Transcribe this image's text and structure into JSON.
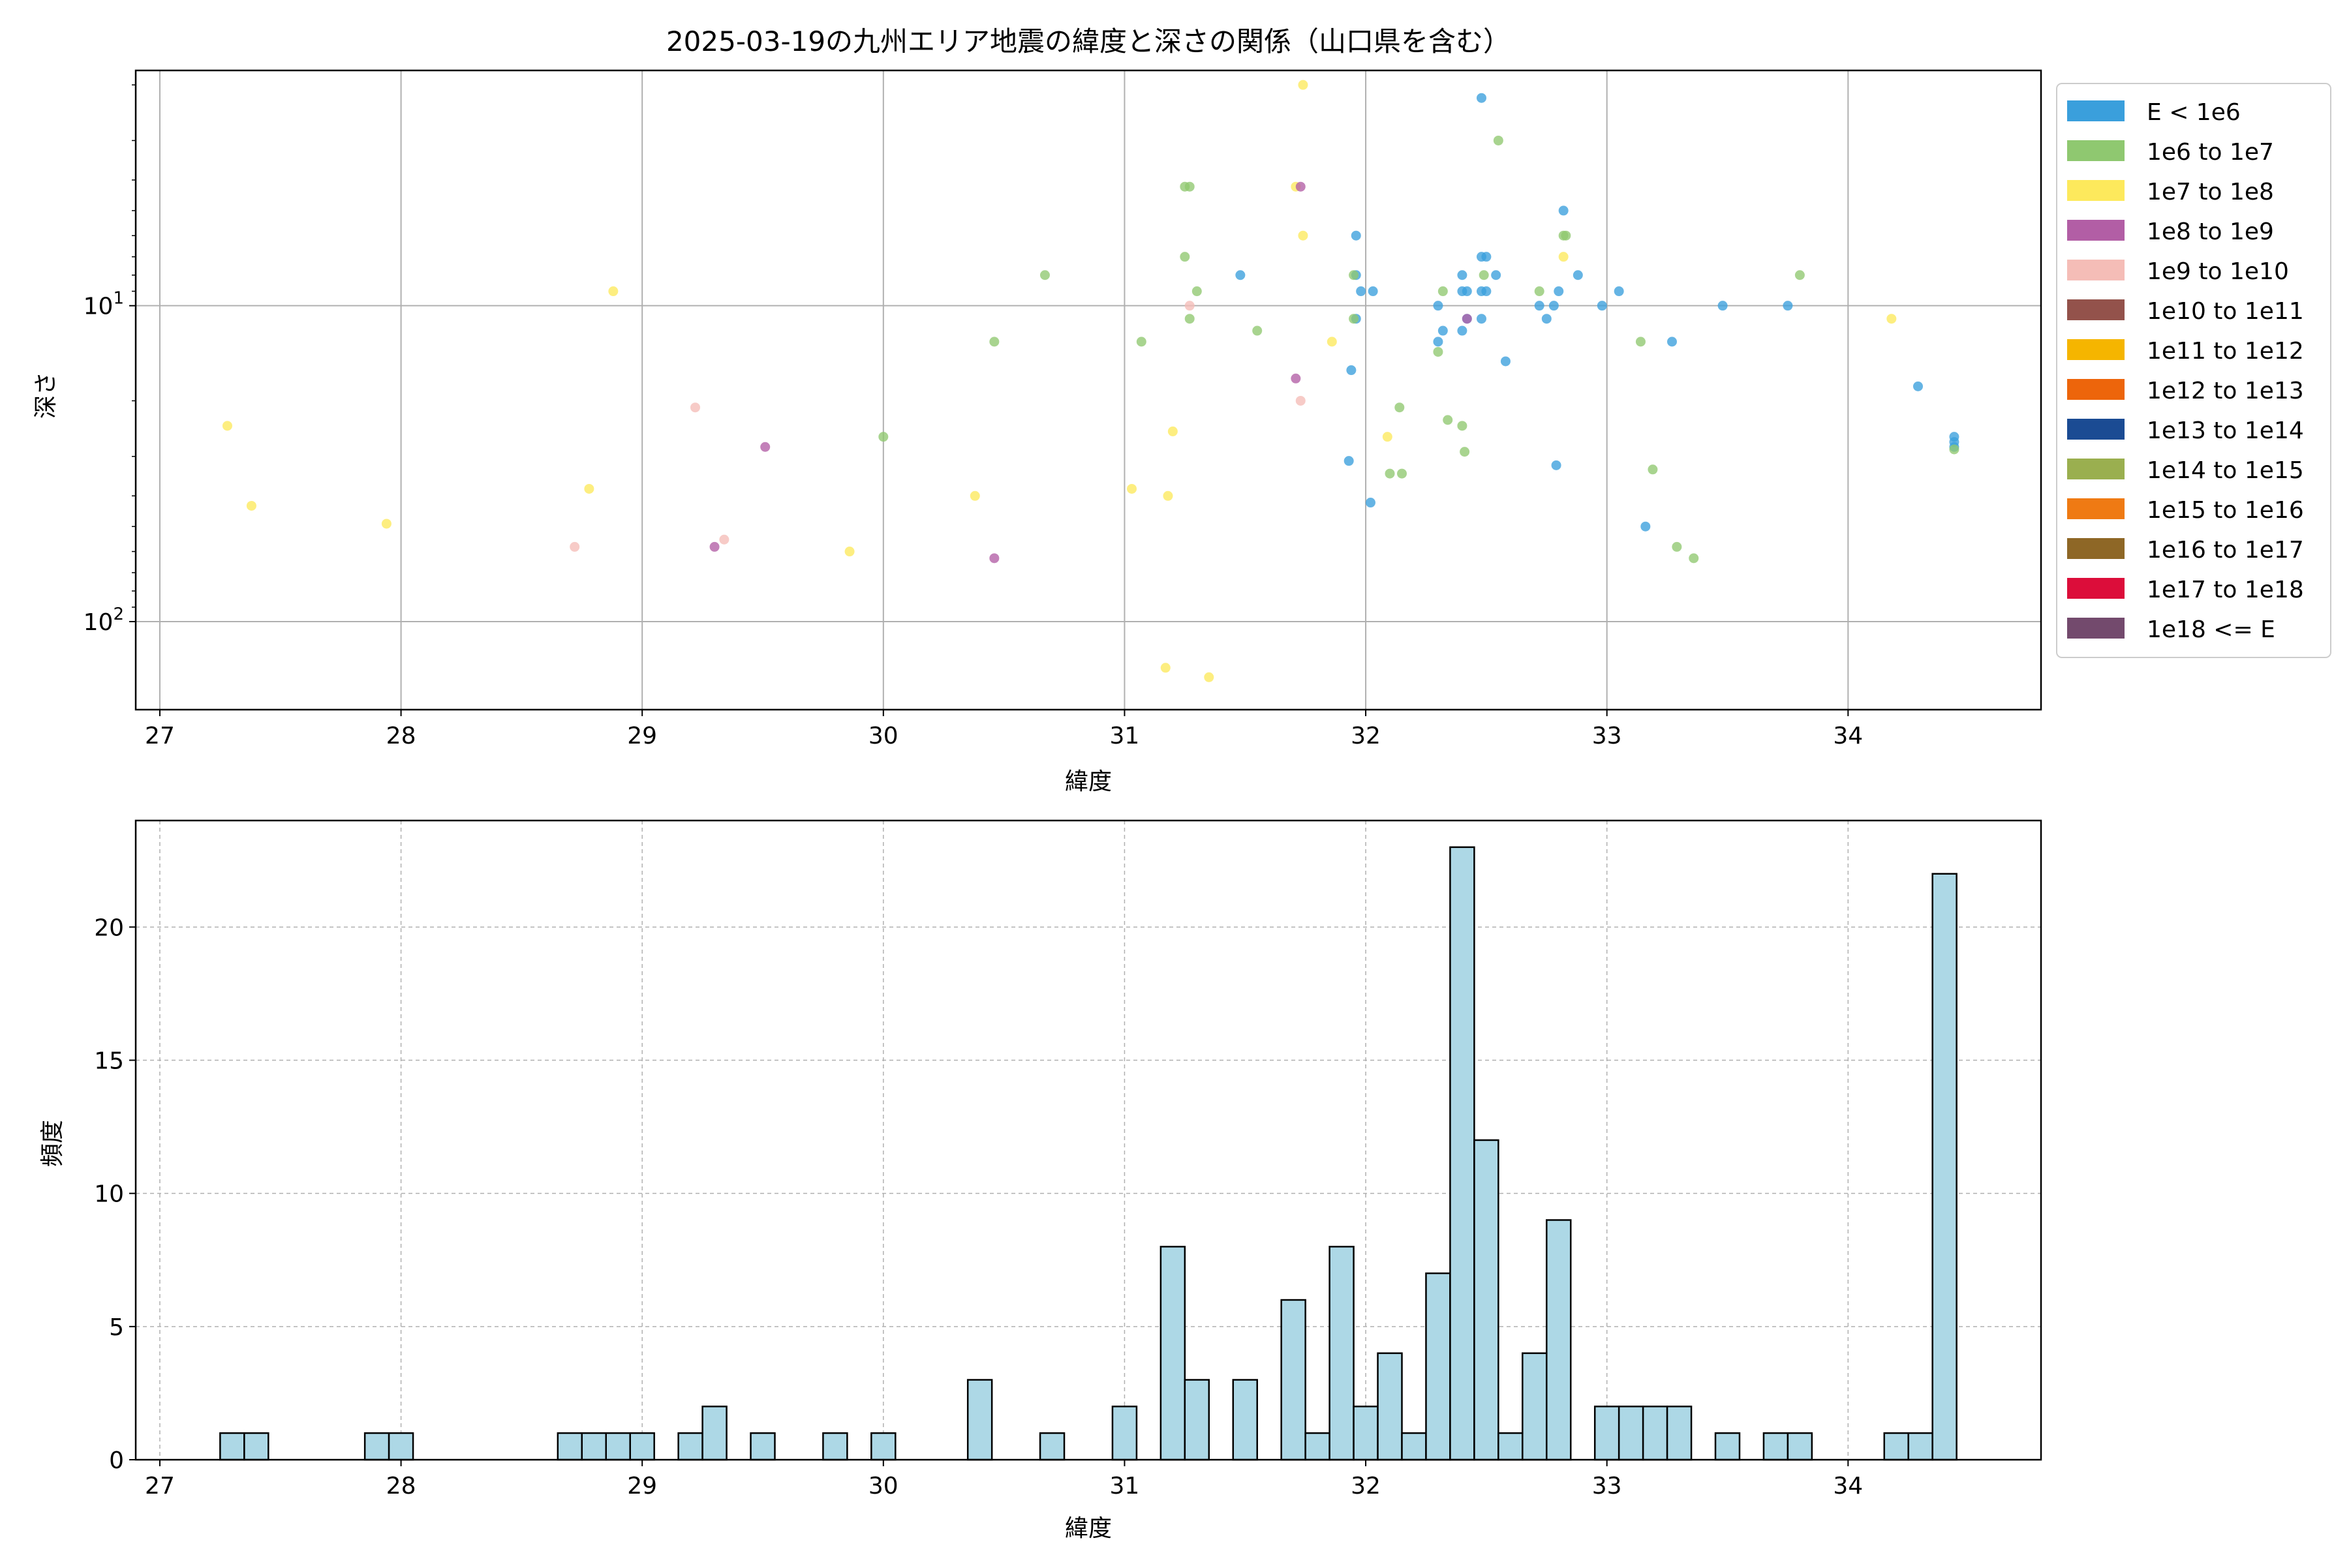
{
  "chart_data": [
    {
      "type": "scatter",
      "title": "2025-03-19の九州エリア地震の緯度と深さの関係（山口県を含む）",
      "xlabel": "緯度",
      "ylabel": "深さ",
      "xlim": [
        26.9,
        34.8
      ],
      "x_ticks": [
        27,
        28,
        29,
        30,
        31,
        32,
        33,
        34
      ],
      "y_scale": "log",
      "y_inverted": true,
      "ylim": [
        1.8,
        190
      ],
      "y_ticks": [
        {
          "value": 10,
          "label": "10^1"
        },
        {
          "value": 100,
          "label": "10^2"
        }
      ],
      "grid": true,
      "legend_position": "outside-right",
      "legend": [
        {
          "label": "E < 1e6",
          "color": "#3a9fdc"
        },
        {
          "label": "1e6 to 1e7",
          "color": "#8fc870"
        },
        {
          "label": "1e7 to 1e8",
          "color": "#fde95c"
        },
        {
          "label": "1e8 to 1e9",
          "color": "#b25ea5"
        },
        {
          "label": "1e9 to 1e10",
          "color": "#f5bdb7"
        },
        {
          "label": "1e10 to 1e11",
          "color": "#93524b"
        },
        {
          "label": "1e11 to 1e12",
          "color": "#f5b500"
        },
        {
          "label": "1e12 to 1e13",
          "color": "#ed650b"
        },
        {
          "label": "1e13 to 1e14",
          "color": "#1b4b93"
        },
        {
          "label": "1e14 to 1e15",
          "color": "#9aaf4f"
        },
        {
          "label": "1e15 to 1e16",
          "color": "#ef7a13"
        },
        {
          "label": "1e16 to 1e17",
          "color": "#8e6726"
        },
        {
          "label": "1e17 to 1e18",
          "color": "#dc0d3a"
        },
        {
          "label": "1e18 <= E",
          "color": "#734a6d"
        }
      ],
      "series": [
        {
          "class": 0,
          "points": [
            [
              32.48,
              2.2
            ],
            [
              31.96,
              6.0
            ],
            [
              31.96,
              8.0
            ],
            [
              31.98,
              9.0
            ],
            [
              32.03,
              9.0
            ],
            [
              31.96,
              11.0
            ],
            [
              31.94,
              16.0
            ],
            [
              31.93,
              31.0
            ],
            [
              32.02,
              42.0
            ],
            [
              31.48,
              8.0
            ],
            [
              32.3,
              13.0
            ],
            [
              32.32,
              12.0
            ],
            [
              32.3,
              10.0
            ],
            [
              32.4,
              8.0
            ],
            [
              32.4,
              9.0
            ],
            [
              32.42,
              9.0
            ],
            [
              32.42,
              11.0
            ],
            [
              32.4,
              12.0
            ],
            [
              32.48,
              7.0
            ],
            [
              32.5,
              7.0
            ],
            [
              32.48,
              9.0
            ],
            [
              32.5,
              9.0
            ],
            [
              32.48,
              11.0
            ],
            [
              32.54,
              8.0
            ],
            [
              32.58,
              15.0
            ],
            [
              32.72,
              10.0
            ],
            [
              32.75,
              11.0
            ],
            [
              32.78,
              10.0
            ],
            [
              32.8,
              9.0
            ],
            [
              32.82,
              5.0
            ],
            [
              32.88,
              8.0
            ],
            [
              32.98,
              10.0
            ],
            [
              33.05,
              9.0
            ],
            [
              32.79,
              32.0
            ],
            [
              33.16,
              50.0
            ],
            [
              33.27,
              13.0
            ],
            [
              33.48,
              10.0
            ],
            [
              33.75,
              10.0
            ],
            [
              34.29,
              18.0
            ],
            [
              34.44,
              26.0
            ],
            [
              34.44,
              27.0
            ],
            [
              34.44,
              28.0
            ]
          ]
        },
        {
          "class": 1,
          "points": [
            [
              32.55,
              3.0
            ],
            [
              31.25,
              4.2
            ],
            [
              31.27,
              4.2
            ],
            [
              31.25,
              7.0
            ],
            [
              31.3,
              9.0
            ],
            [
              31.27,
              11.0
            ],
            [
              30.67,
              8.0
            ],
            [
              31.07,
              13.0
            ],
            [
              30.46,
              13.0
            ],
            [
              31.55,
              12.0
            ],
            [
              31.95,
              8.0
            ],
            [
              31.95,
              11.0
            ],
            [
              32.32,
              9.0
            ],
            [
              32.3,
              14.0
            ],
            [
              32.49,
              8.0
            ],
            [
              32.72,
              9.0
            ],
            [
              32.82,
              6.0
            ],
            [
              32.83,
              6.0
            ],
            [
              33.14,
              13.0
            ],
            [
              33.8,
              8.0
            ],
            [
              30.0,
              26.0
            ],
            [
              32.14,
              21.0
            ],
            [
              32.34,
              23.0
            ],
            [
              32.4,
              24.0
            ],
            [
              32.41,
              29.0
            ],
            [
              32.1,
              34.0
            ],
            [
              32.15,
              34.0
            ],
            [
              33.19,
              33.0
            ],
            [
              33.29,
              58.0
            ],
            [
              33.36,
              63.0
            ],
            [
              34.44,
              28.5
            ]
          ]
        },
        {
          "class": 2,
          "points": [
            [
              31.74,
              2.0
            ],
            [
              31.71,
              4.2
            ],
            [
              31.74,
              6.0
            ],
            [
              32.82,
              7.0
            ],
            [
              31.86,
              13.0
            ],
            [
              34.18,
              11.0
            ],
            [
              28.88,
              9.0
            ],
            [
              27.28,
              24.0
            ],
            [
              27.38,
              43.0
            ],
            [
              27.94,
              49.0
            ],
            [
              28.78,
              38.0
            ],
            [
              29.86,
              60.0
            ],
            [
              30.38,
              40.0
            ],
            [
              31.03,
              38.0
            ],
            [
              31.18,
              40.0
            ],
            [
              31.2,
              25.0
            ],
            [
              32.09,
              26.0
            ],
            [
              31.17,
              140.0
            ],
            [
              31.35,
              150.0
            ]
          ]
        },
        {
          "class": 3,
          "points": [
            [
              31.73,
              4.2
            ],
            [
              31.71,
              17.0
            ],
            [
              29.51,
              28.0
            ],
            [
              29.3,
              58.0
            ],
            [
              30.46,
              63.0
            ],
            [
              32.42,
              11.0
            ]
          ]
        },
        {
          "class": 4,
          "points": [
            [
              31.27,
              10.0
            ],
            [
              31.73,
              20.0
            ],
            [
              29.22,
              21.0
            ],
            [
              28.72,
              58.0
            ],
            [
              29.34,
              55.0
            ]
          ]
        }
      ]
    },
    {
      "type": "bar",
      "title": "",
      "xlabel": "緯度",
      "ylabel": "頻度",
      "xlim": [
        26.9,
        34.8
      ],
      "x_ticks": [
        27,
        28,
        29,
        30,
        31,
        32,
        33,
        34
      ],
      "ylim": [
        0,
        24
      ],
      "y_ticks": [
        0,
        5,
        10,
        15,
        20
      ],
      "grid": true,
      "bin_width": 0.1,
      "color": "#add8e6",
      "edge_color": "#000000",
      "bins": [
        [
          27.3,
          1
        ],
        [
          27.4,
          1
        ],
        [
          27.9,
          1
        ],
        [
          28.0,
          1
        ],
        [
          28.7,
          1
        ],
        [
          28.8,
          1
        ],
        [
          28.9,
          1
        ],
        [
          29.0,
          1
        ],
        [
          29.2,
          1
        ],
        [
          29.3,
          2
        ],
        [
          29.5,
          1
        ],
        [
          29.8,
          1
        ],
        [
          30.0,
          1
        ],
        [
          30.4,
          3
        ],
        [
          30.7,
          1
        ],
        [
          31.0,
          2
        ],
        [
          31.2,
          8
        ],
        [
          31.3,
          3
        ],
        [
          31.5,
          3
        ],
        [
          31.7,
          6
        ],
        [
          31.8,
          1
        ],
        [
          31.9,
          8
        ],
        [
          32.0,
          2
        ],
        [
          32.1,
          4
        ],
        [
          32.2,
          1
        ],
        [
          32.3,
          7
        ],
        [
          32.4,
          23
        ],
        [
          32.5,
          12
        ],
        [
          32.6,
          1
        ],
        [
          32.7,
          4
        ],
        [
          32.8,
          9
        ],
        [
          33.0,
          2
        ],
        [
          33.1,
          2
        ],
        [
          33.2,
          2
        ],
        [
          33.3,
          2
        ],
        [
          33.5,
          1
        ],
        [
          33.7,
          1
        ],
        [
          33.8,
          1
        ],
        [
          34.2,
          1
        ],
        [
          34.3,
          1
        ],
        [
          34.4,
          22
        ]
      ]
    }
  ]
}
